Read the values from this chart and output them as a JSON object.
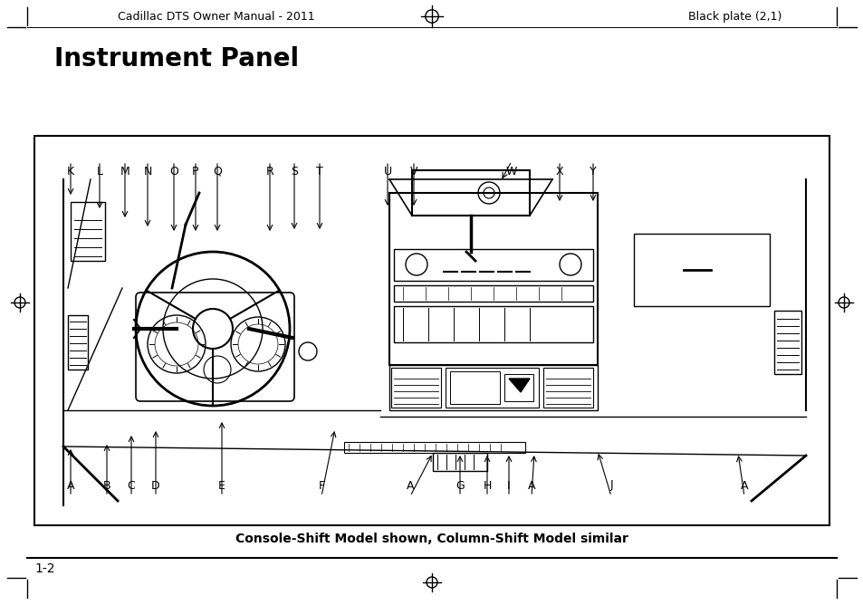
{
  "page_title": "Instrument Panel",
  "header_left": "Cadillac DTS Owner Manual - 2011",
  "header_right": "Black plate (2,1)",
  "footer_text": "Console-Shift Model shown, Column-Shift Model similar",
  "page_number": "1-2",
  "bg_color": "#ffffff",
  "text_color": "#000000",
  "title_font_size": 20,
  "header_font_size": 9,
  "footer_font_size": 10,
  "label_font_size": 9
}
